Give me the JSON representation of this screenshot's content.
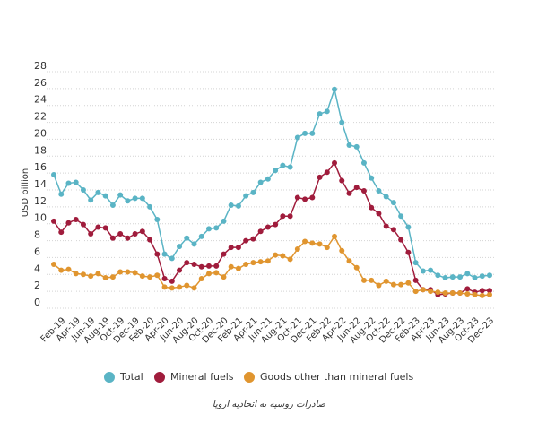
{
  "chart_data": {
    "type": "line",
    "y_label": "USD billion",
    "caption": "صادرات روسیه به اتحادیه اروپا",
    "categories": [
      null,
      "Feb-19",
      null,
      "Apr-19",
      null,
      "Jun-19",
      null,
      "Aug-19",
      null,
      "Oct-19",
      null,
      "Dec-19",
      null,
      "Feb-20",
      null,
      "Apr-20",
      null,
      "Jun-20",
      null,
      "Aug-20",
      null,
      "Oct-20",
      null,
      "Dec-20",
      null,
      "Feb-21",
      null,
      "Apr-21",
      null,
      "Jun-21",
      null,
      "Aug-21",
      null,
      "Oct-21",
      null,
      "Dec-21",
      null,
      "Feb-22",
      null,
      "Apr-22",
      null,
      "Jun-22",
      null,
      "Aug-22",
      null,
      "Oct-22",
      null,
      "Dec-22",
      null,
      "Feb-23",
      null,
      "Apr-23",
      null,
      "Jun-23",
      null,
      "Aug-23",
      null,
      "Oct-23",
      null,
      "Dec-23"
    ],
    "series": [
      {
        "name": "Total",
        "color": "#5ab4c5",
        "values": [
          15.8,
          13.5,
          14.8,
          14.9,
          14,
          12.8,
          13.7,
          13.3,
          12.2,
          13.4,
          12.7,
          13,
          13,
          12,
          10.5,
          6.4,
          5.9,
          7.3,
          8.3,
          7.6,
          8.5,
          9.4,
          9.5,
          10.3,
          12.2,
          12.1,
          13.3,
          13.7,
          14.9,
          15.3,
          16.3,
          16.9,
          16.7,
          20.2,
          20.7,
          20.7,
          23,
          23.3,
          25.9,
          22,
          19.3,
          19.1,
          17.2,
          15.4,
          13.9,
          13.2,
          12.5,
          10.9,
          9.6,
          5.4,
          4.4,
          4.5,
          3.9,
          3.6,
          3.7,
          3.7,
          4.1,
          3.6,
          3.8,
          3.9
        ]
      },
      {
        "name": "Mineral fuels",
        "color": "#a01c3c",
        "values": [
          10.3,
          9,
          10.1,
          10.5,
          9.9,
          8.8,
          9.6,
          9.5,
          8.3,
          8.8,
          8.3,
          8.8,
          9.1,
          8.1,
          6.4,
          3.5,
          3.2,
          4.5,
          5.4,
          5.2,
          4.9,
          5,
          5,
          6.4,
          7.2,
          7.2,
          8,
          8.2,
          9.1,
          9.6,
          9.9,
          10.9,
          10.9,
          13.1,
          12.9,
          13.1,
          15.5,
          16.1,
          17.2,
          15.1,
          13.6,
          14.3,
          13.9,
          11.9,
          11.2,
          9.7,
          9.3,
          8.1,
          6.6,
          3.3,
          2.2,
          2.2,
          1.6,
          1.7,
          1.8,
          1.8,
          2.3,
          1.9,
          2.1,
          2.1
        ]
      },
      {
        "name": "Goods other than mineral fuels",
        "color": "#e0952f",
        "values": [
          5.2,
          4.5,
          4.6,
          4.1,
          4,
          3.8,
          4.1,
          3.6,
          3.7,
          4.3,
          4.3,
          4.2,
          3.8,
          3.7,
          3.9,
          2.5,
          2.4,
          2.5,
          2.7,
          2.4,
          3.5,
          4.1,
          4.2,
          3.7,
          4.9,
          4.7,
          5.2,
          5.4,
          5.5,
          5.6,
          6.3,
          6.2,
          5.8,
          7,
          7.9,
          7.7,
          7.6,
          7.2,
          8.5,
          6.8,
          5.6,
          4.8,
          3.3,
          3.3,
          2.7,
          3.2,
          2.8,
          2.8,
          3,
          2,
          2.2,
          2,
          1.9,
          1.8,
          1.8,
          1.8,
          1.7,
          1.6,
          1.5,
          1.6
        ]
      }
    ],
    "ylim": [
      0,
      28
    ],
    "yticks": [
      0,
      2,
      4,
      6,
      8,
      10,
      12,
      14,
      16,
      18,
      20,
      22,
      24,
      26,
      28
    ],
    "grid": true
  }
}
